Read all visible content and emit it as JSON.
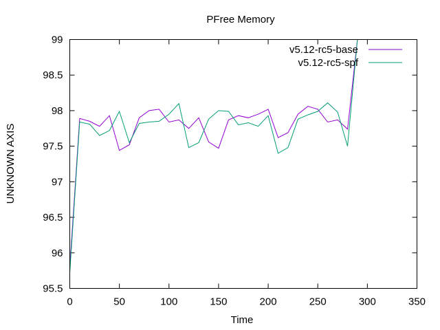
{
  "chart_data": {
    "type": "line",
    "title": "PFree Memory",
    "xlabel": "Time",
    "ylabel": "UNKNOWN AXIS",
    "xlim": [
      0,
      350
    ],
    "ylim": [
      95.5,
      99
    ],
    "x_ticks": [
      0,
      50,
      100,
      150,
      200,
      250,
      300,
      350
    ],
    "y_ticks": [
      95.5,
      96,
      96.5,
      97,
      97.5,
      98,
      98.5,
      99
    ],
    "x_tick_labels": [
      "0",
      "50",
      "100",
      "150",
      "200",
      "250",
      "300",
      "350"
    ],
    "y_tick_labels": [
      "95.5",
      "96",
      "96.5",
      "97",
      "97.5",
      "98",
      "98.5",
      "99"
    ],
    "grid": false,
    "legend_position": "top-right",
    "x": [
      0,
      10,
      20,
      30,
      40,
      50,
      60,
      70,
      80,
      90,
      100,
      110,
      120,
      130,
      140,
      150,
      160,
      170,
      180,
      190,
      200,
      210,
      220,
      230,
      240,
      250,
      260,
      270,
      280,
      290
    ],
    "series": [
      {
        "name": "v5.12-rc5-base",
        "color": "#9400d3",
        "values": [
          95.8,
          97.89,
          97.85,
          97.78,
          97.93,
          97.44,
          97.52,
          97.9,
          98.0,
          98.02,
          97.84,
          97.87,
          97.75,
          97.9,
          97.56,
          97.47,
          97.87,
          97.93,
          97.9,
          97.95,
          98.02,
          97.62,
          97.69,
          97.95,
          98.06,
          98.02,
          97.84,
          97.87,
          97.74,
          99.0
        ]
      },
      {
        "name": "v5.12-rc5-spf",
        "color": "#009e73",
        "values": [
          95.72,
          97.84,
          97.81,
          97.65,
          97.72,
          97.99,
          97.55,
          97.82,
          97.84,
          97.85,
          97.95,
          98.1,
          97.48,
          97.55,
          97.88,
          98.0,
          97.99,
          97.8,
          97.83,
          97.78,
          97.93,
          97.4,
          97.48,
          97.88,
          97.94,
          97.99,
          98.11,
          97.98,
          97.5,
          99.0
        ]
      }
    ]
  }
}
